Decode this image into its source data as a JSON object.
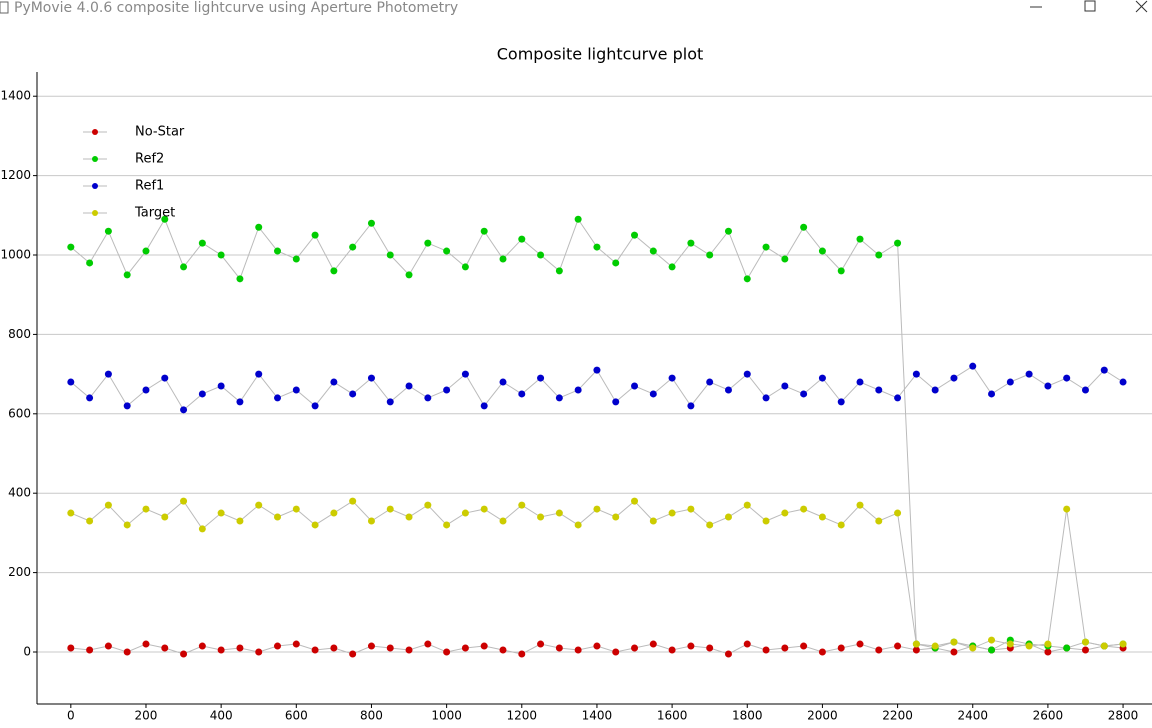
{
  "window": {
    "title": "PyMovie 4.0.6 composite lightcurve using Aperture Photometry"
  },
  "chart_data": {
    "type": "line",
    "title": "Composite lightcurve plot",
    "x": [
      0,
      50,
      100,
      150,
      200,
      250,
      300,
      350,
      400,
      450,
      500,
      550,
      600,
      650,
      700,
      750,
      800,
      850,
      900,
      950,
      1000,
      1050,
      1100,
      1150,
      1200,
      1250,
      1300,
      1350,
      1400,
      1450,
      1500,
      1550,
      1600,
      1650,
      1700,
      1750,
      1800,
      1850,
      1900,
      1950,
      2000,
      2050,
      2100,
      2150,
      2200,
      2250,
      2300,
      2350,
      2400,
      2450,
      2500,
      2550,
      2600,
      2650,
      2700,
      2750,
      2800
    ],
    "series": [
      {
        "name": "No-Star",
        "color": "#cc0000",
        "values": [
          10,
          5,
          15,
          0,
          20,
          10,
          -5,
          15,
          5,
          10,
          0,
          15,
          20,
          5,
          10,
          -5,
          15,
          10,
          5,
          20,
          0,
          10,
          15,
          5,
          -5,
          20,
          10,
          5,
          15,
          0,
          10,
          20,
          5,
          15,
          10,
          -5,
          20,
          5,
          10,
          15,
          0,
          10,
          20,
          5,
          15,
          5,
          10,
          0,
          15,
          5,
          10,
          20,
          0,
          10,
          5,
          15,
          10
        ]
      },
      {
        "name": "Ref2",
        "color": "#00cc00",
        "values": [
          1020,
          980,
          1060,
          950,
          1010,
          1090,
          970,
          1030,
          1000,
          940,
          1070,
          1010,
          990,
          1050,
          960,
          1020,
          1080,
          1000,
          950,
          1030,
          1010,
          970,
          1060,
          990,
          1040,
          1000,
          960,
          1090,
          1020,
          980,
          1050,
          1010,
          970,
          1030,
          1000,
          1060,
          940,
          1020,
          990,
          1070,
          1010,
          960,
          1040,
          1000,
          1030,
          20,
          10,
          25,
          15,
          5,
          30,
          20,
          15,
          10,
          25,
          15,
          20
        ]
      },
      {
        "name": "Ref1",
        "color": "#0000cc",
        "values": [
          680,
          640,
          700,
          620,
          660,
          690,
          610,
          650,
          670,
          630,
          700,
          640,
          660,
          620,
          680,
          650,
          690,
          630,
          670,
          640,
          660,
          700,
          620,
          680,
          650,
          690,
          640,
          660,
          710,
          630,
          670,
          650,
          690,
          620,
          680,
          660,
          700,
          640,
          670,
          650,
          690,
          630,
          680,
          660,
          640,
          700,
          660,
          690,
          720,
          650,
          680,
          700,
          670,
          690,
          660,
          710,
          680
        ]
      },
      {
        "name": "Target",
        "color": "#cccc00",
        "values": [
          350,
          330,
          370,
          320,
          360,
          340,
          380,
          310,
          350,
          330,
          370,
          340,
          360,
          320,
          350,
          380,
          330,
          360,
          340,
          370,
          320,
          350,
          360,
          330,
          370,
          340,
          350,
          320,
          360,
          340,
          380,
          330,
          350,
          360,
          320,
          340,
          370,
          330,
          350,
          360,
          340,
          320,
          370,
          330,
          350,
          20,
          15,
          25,
          10,
          30,
          20,
          15,
          20,
          360,
          25,
          15,
          20
        ]
      }
    ],
    "xlim": [
      -90,
      2877
    ],
    "ylim": [
      -131,
      1461
    ],
    "xticks": [
      0,
      200,
      400,
      600,
      800,
      1000,
      1200,
      1400,
      1600,
      1800,
      2000,
      2200,
      2400,
      2600,
      2800
    ],
    "yticks": [
      0,
      200,
      400,
      600,
      800,
      1000,
      1200,
      1400
    ],
    "grid": true,
    "legend": "upper-left",
    "line_color": "#bbbbbb"
  }
}
